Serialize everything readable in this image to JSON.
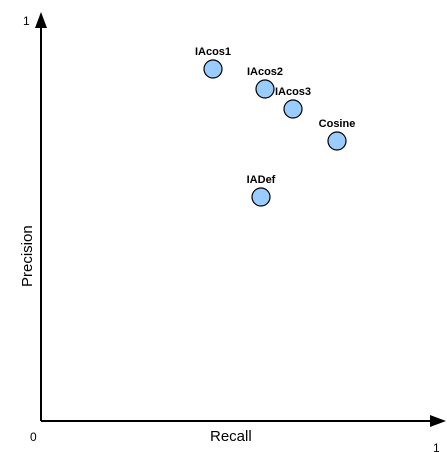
{
  "chart_data": {
    "type": "scatter",
    "title": "",
    "xlabel": "Recall",
    "ylabel": "Precision",
    "xlim": [
      0,
      1
    ],
    "ylim": [
      0,
      1
    ],
    "x_ticks": [
      "0",
      "1"
    ],
    "y_ticks": [
      "1"
    ],
    "grid": false,
    "legend": "none",
    "marker_fill": "#99CCFF",
    "marker_stroke": "#000000",
    "points": [
      {
        "label": "IAcos1",
        "x": 0.43,
        "y": 0.88
      },
      {
        "label": "IAcos2",
        "x": 0.56,
        "y": 0.83
      },
      {
        "label": "IAcos3",
        "x": 0.63,
        "y": 0.78
      },
      {
        "label": "Cosine",
        "x": 0.74,
        "y": 0.7
      },
      {
        "label": "IADef",
        "x": 0.55,
        "y": 0.56
      }
    ]
  }
}
